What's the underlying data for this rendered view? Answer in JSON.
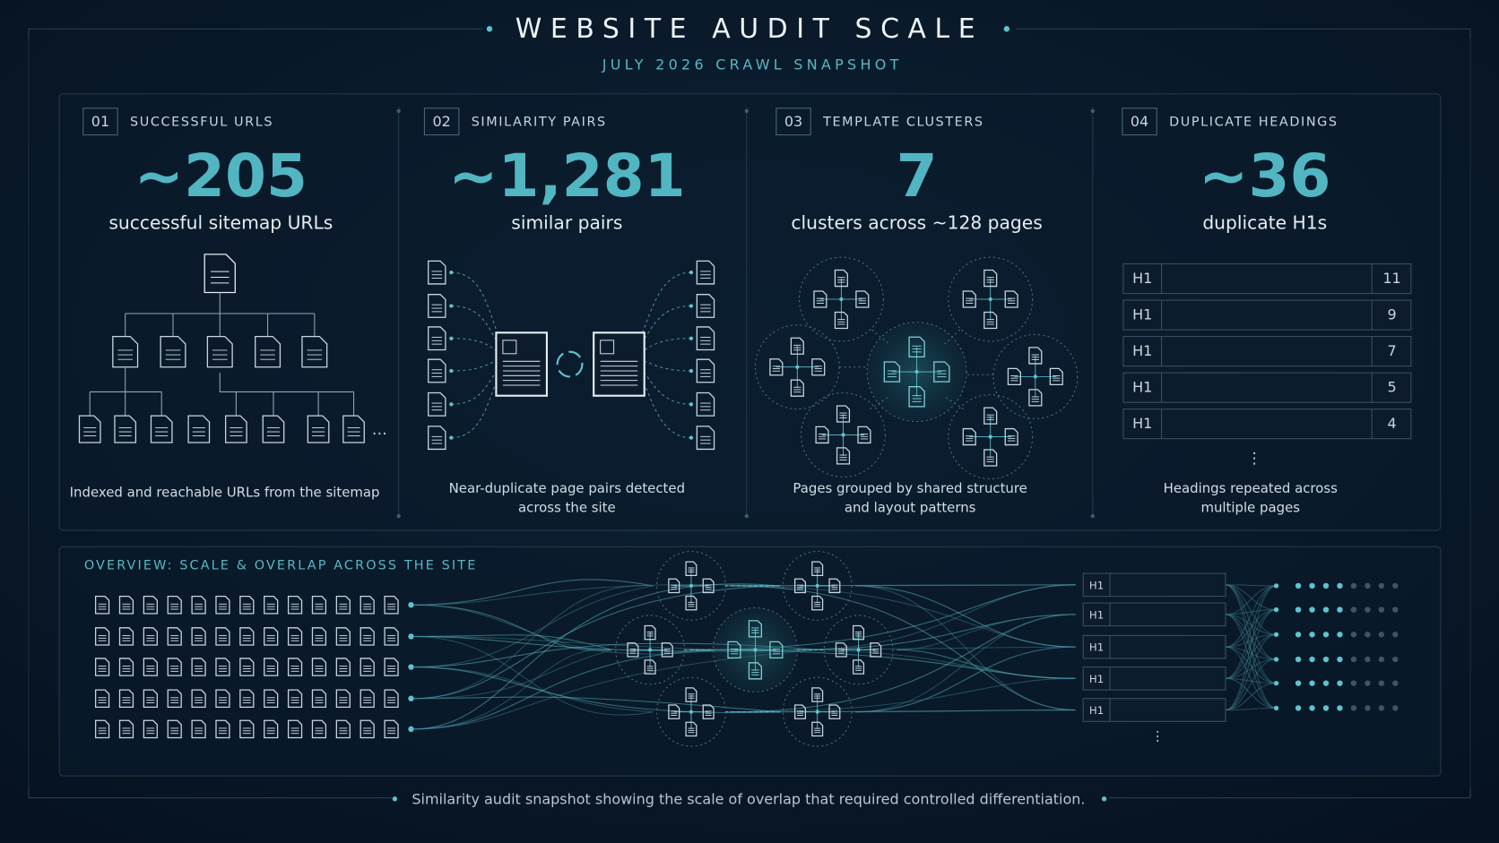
{
  "header": {
    "title": "WEBSITE AUDIT SCALE",
    "subtitle": "JULY 2026 CRAWL SNAPSHOT"
  },
  "cards": [
    {
      "badge": "01",
      "label": "SUCCESSFUL URLS",
      "stat": "~205",
      "stat_caption": "successful sitemap URLs",
      "description": [
        "Indexed and reachable URLs from the sitemap"
      ]
    },
    {
      "badge": "02",
      "label": "SIMILARITY PAIRS",
      "stat": "~1,281",
      "stat_caption": "similar pairs",
      "description": [
        "Near-duplicate page pairs detected",
        "across the site"
      ]
    },
    {
      "badge": "03",
      "label": "TEMPLATE CLUSTERS",
      "stat": "7",
      "stat_caption": "clusters across ~128 pages",
      "description": [
        "Pages grouped by shared structure",
        "and layout patterns"
      ]
    },
    {
      "badge": "04",
      "label": "DUPLICATE HEADINGS",
      "stat": "~36",
      "stat_caption": "duplicate H1s",
      "description": [
        "Headings repeated across",
        "multiple pages"
      ]
    }
  ],
  "headings": {
    "rows": [
      {
        "tag": "H1",
        "count": 11
      },
      {
        "tag": "H1",
        "count": 9
      },
      {
        "tag": "H1",
        "count": 7
      },
      {
        "tag": "H1",
        "count": 5
      },
      {
        "tag": "H1",
        "count": 4
      }
    ]
  },
  "overview": {
    "title": "OVERVIEW: SCALE & OVERLAP ACROSS THE SITE",
    "tags": [
      "H1",
      "H1",
      "H1",
      "H1",
      "H1"
    ]
  },
  "caption": "Similarity audit snapshot showing the scale of overlap that required controlled differentiation."
}
